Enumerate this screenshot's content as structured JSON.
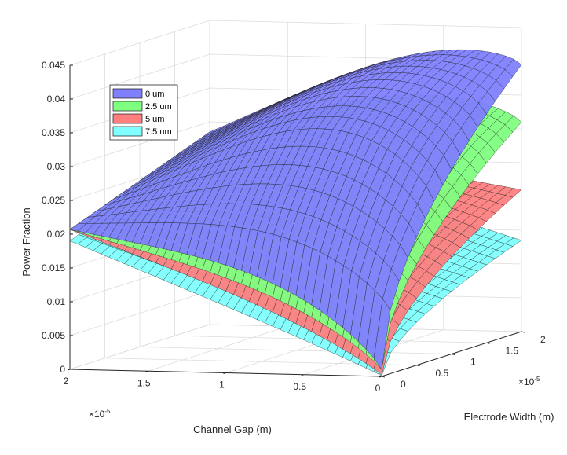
{
  "chart_data": {
    "type": "surface3d",
    "title": "",
    "xlabel": "Channel Gap (m)",
    "ylabel": "Electrode Width (m)",
    "zlabel": "Power Fraction",
    "x_exponent_label": "×10",
    "x_exponent_power": "-5",
    "y_exponent_label": "×10",
    "y_exponent_power": "-5",
    "xlim": [
      0,
      2e-05
    ],
    "ylim": [
      0,
      2e-05
    ],
    "zlim": [
      0,
      0.045
    ],
    "x_ticks": [
      {
        "value": 0,
        "label": "0"
      },
      {
        "value": 0.5,
        "label": "0.5"
      },
      {
        "value": 1,
        "label": "1"
      },
      {
        "value": 1.5,
        "label": "1.5"
      },
      {
        "value": 2,
        "label": "2"
      }
    ],
    "y_ticks": [
      {
        "value": 0,
        "label": "0"
      },
      {
        "value": 0.5,
        "label": "0.5"
      },
      {
        "value": 1,
        "label": "1"
      },
      {
        "value": 1.5,
        "label": "1.5"
      },
      {
        "value": 2,
        "label": "2"
      }
    ],
    "z_ticks": [
      {
        "value": 0,
        "label": "0"
      },
      {
        "value": 0.005,
        "label": "0.005"
      },
      {
        "value": 0.01,
        "label": "0.01"
      },
      {
        "value": 0.015,
        "label": "0.015"
      },
      {
        "value": 0.02,
        "label": "0.02"
      },
      {
        "value": 0.025,
        "label": "0.025"
      },
      {
        "value": 0.03,
        "label": "0.03"
      },
      {
        "value": 0.035,
        "label": "0.035"
      },
      {
        "value": 0.04,
        "label": "0.04"
      },
      {
        "value": 0.045,
        "label": "0.045"
      }
    ],
    "grid": true,
    "legend_position": "top-left",
    "series": [
      {
        "name": "0 um",
        "color": "#7f7fff",
        "corners": {
          "x0_y0": 0.001,
          "x2_y0": 0.0207,
          "x0_y2": 0.0395,
          "x2_y2": 0.0285
        },
        "ridge_peak": 0.045
      },
      {
        "name": "2.5 um",
        "color": "#7fff7f",
        "corners": {
          "x0_y0": 0.001,
          "x2_y0": 0.0207,
          "x0_y2": 0.031,
          "x2_y2": 0.0285
        },
        "ridge_peak": 0.036
      },
      {
        "name": "5 um",
        "color": "#ff7f7f",
        "corners": {
          "x0_y0": 0.0002,
          "x2_y0": 0.0207,
          "x0_y2": 0.021,
          "x2_y2": 0.0285
        },
        "ridge_peak": 0.0285
      },
      {
        "name": "7.5 um",
        "color": "#7fffff",
        "corners": {
          "x0_y0": 0.0001,
          "x2_y0": 0.019,
          "x0_y2": 0.0135,
          "x2_y2": 0.0275
        },
        "ridge_peak": 0.0205
      }
    ]
  }
}
